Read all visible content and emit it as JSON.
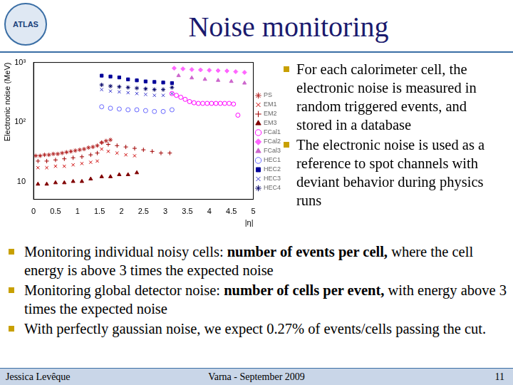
{
  "header": {
    "title": "Noise monitoring",
    "logo": "ATLAS"
  },
  "side_bullets": [
    "For each calorimeter cell, the electronic noise is measured in random triggered events, and stored in a database",
    "The electronic noise is used as a reference to spot channels with deviant behavior during physics runs"
  ],
  "bullets": [
    [
      {
        "text": "Monitoring individual noisy cells: ",
        "bold": false
      },
      {
        "text": "number of events per cell,",
        "bold": true
      },
      {
        "text": " where the cell energy is above 3 times the expected noise",
        "bold": false
      }
    ],
    [
      {
        "text": "Monitoring global detector noise: ",
        "bold": false
      },
      {
        "text": "number of cells per event,",
        "bold": true
      },
      {
        "text": " with energy above 3 times the expected noise",
        "bold": false
      }
    ],
    [
      {
        "text": "With perfectly gaussian noise, we expect 0.27% of events/cells passing the cut.",
        "bold": false
      }
    ]
  ],
  "footer": {
    "author": "Jessica Levêque",
    "event": "Varna - September 2009",
    "page": "11"
  },
  "chart_data": {
    "type": "scatter",
    "xlabel": "|η|",
    "ylabel": "Electronic noise (MeV)",
    "log": "y",
    "grid": false,
    "legend": "right",
    "xlim": [
      0,
      5
    ],
    "xticks": [
      0,
      0.5,
      1,
      1.5,
      2,
      2.5,
      3,
      3.5,
      4,
      4.5,
      5
    ],
    "ylim": [
      5,
      1000
    ],
    "yticks": [
      10,
      {
        "value": 100,
        "label": "10²"
      },
      {
        "value": 1000,
        "label": "10³"
      }
    ],
    "series": [
      {
        "name": "PS",
        "color": "#b22222",
        "marker": "star",
        "x": [
          0.05,
          0.15,
          0.25,
          0.35,
          0.45,
          0.55,
          0.65,
          0.75,
          0.85,
          0.95,
          1.05,
          1.15,
          1.25,
          1.35,
          1.45,
          1.55,
          1.65,
          1.75
        ],
        "values": [
          27,
          27,
          28,
          28,
          29,
          29,
          30,
          31,
          32,
          33,
          34,
          35,
          37,
          38,
          40,
          45,
          48,
          50
        ]
      },
      {
        "name": "EM1",
        "color": "#cc0000",
        "marker": "crossRot",
        "x": [
          0.1,
          0.3,
          0.5,
          0.7,
          0.9,
          1.1,
          1.3,
          1.45,
          1.55,
          1.7,
          1.9,
          2.1,
          2.3
        ],
        "values": [
          17,
          17,
          18,
          18,
          19,
          20,
          21,
          22,
          35,
          32,
          30,
          28,
          27
        ]
      },
      {
        "name": "EM2",
        "color": "#a00000",
        "marker": "cross",
        "x": [
          0.1,
          0.3,
          0.5,
          0.7,
          0.9,
          1.1,
          1.3,
          1.45,
          1.55,
          1.7,
          1.9,
          2.1,
          2.3,
          2.5,
          2.7,
          2.9,
          3.1
        ],
        "values": [
          22,
          22,
          23,
          24,
          25,
          26,
          28,
          30,
          45,
          42,
          40,
          38,
          36,
          34,
          32,
          30,
          30
        ]
      },
      {
        "name": "EM3",
        "color": "#800000",
        "marker": "triangle",
        "x": [
          0.1,
          0.3,
          0.5,
          0.7,
          0.9,
          1.1,
          1.3,
          1.55,
          1.75,
          1.95,
          2.15,
          2.35
        ],
        "values": [
          9,
          9,
          9.5,
          9.5,
          10,
          10,
          11,
          12,
          12,
          13,
          13,
          14
        ]
      },
      {
        "name": "FCal1",
        "color": "#ff00ff",
        "marker": "circle",
        "x": [
          3.15,
          3.25,
          3.35,
          3.45,
          3.55,
          3.65,
          3.75,
          3.85,
          3.95,
          4.05,
          4.15,
          4.25,
          4.35,
          4.45,
          4.55,
          4.65
        ],
        "values": [
          300,
          280,
          260,
          240,
          220,
          210,
          205,
          205,
          205,
          205,
          205,
          205,
          205,
          205,
          200,
          130
        ]
      },
      {
        "name": "FCal2",
        "color": "#ff66ff",
        "marker": "rectRot",
        "x": [
          3.2,
          3.4,
          3.6,
          3.8,
          4.0,
          4.2,
          4.4,
          4.6,
          4.8
        ],
        "values": [
          800,
          780,
          760,
          750,
          740,
          730,
          720,
          700,
          680
        ]
      },
      {
        "name": "FCal3",
        "color": "#cc66cc",
        "marker": "triangle",
        "x": [
          3.3,
          3.6,
          3.9,
          4.2,
          4.5,
          4.8
        ],
        "values": [
          600,
          550,
          520,
          500,
          480,
          450
        ]
      },
      {
        "name": "HEC1",
        "color": "#6666ff",
        "marker": "circle",
        "x": [
          1.55,
          1.75,
          1.95,
          2.15,
          2.35,
          2.55,
          2.75,
          2.95,
          3.15
        ],
        "values": [
          180,
          170,
          165,
          160,
          160,
          155,
          150,
          150,
          160
        ]
      },
      {
        "name": "HEC2",
        "color": "#000099",
        "marker": "rect",
        "x": [
          1.55,
          1.75,
          1.95,
          2.15,
          2.35,
          2.55,
          2.75,
          2.95,
          3.15
        ],
        "values": [
          600,
          580,
          560,
          520,
          500,
          480,
          470,
          460,
          450
        ]
      },
      {
        "name": "HEC3",
        "color": "#3333cc",
        "marker": "crossRot",
        "x": [
          1.55,
          1.75,
          1.95,
          2.15,
          2.35,
          2.55,
          2.75,
          2.95,
          3.15
        ],
        "values": [
          350,
          330,
          320,
          310,
          300,
          290,
          280,
          280,
          300
        ]
      },
      {
        "name": "HEC4",
        "color": "#000066",
        "marker": "star",
        "x": [
          1.55,
          1.75,
          1.95,
          2.15,
          2.35,
          2.55,
          2.75,
          2.95,
          3.15
        ],
        "values": [
          420,
          400,
          390,
          380,
          370,
          360,
          350,
          350,
          380
        ]
      }
    ]
  }
}
